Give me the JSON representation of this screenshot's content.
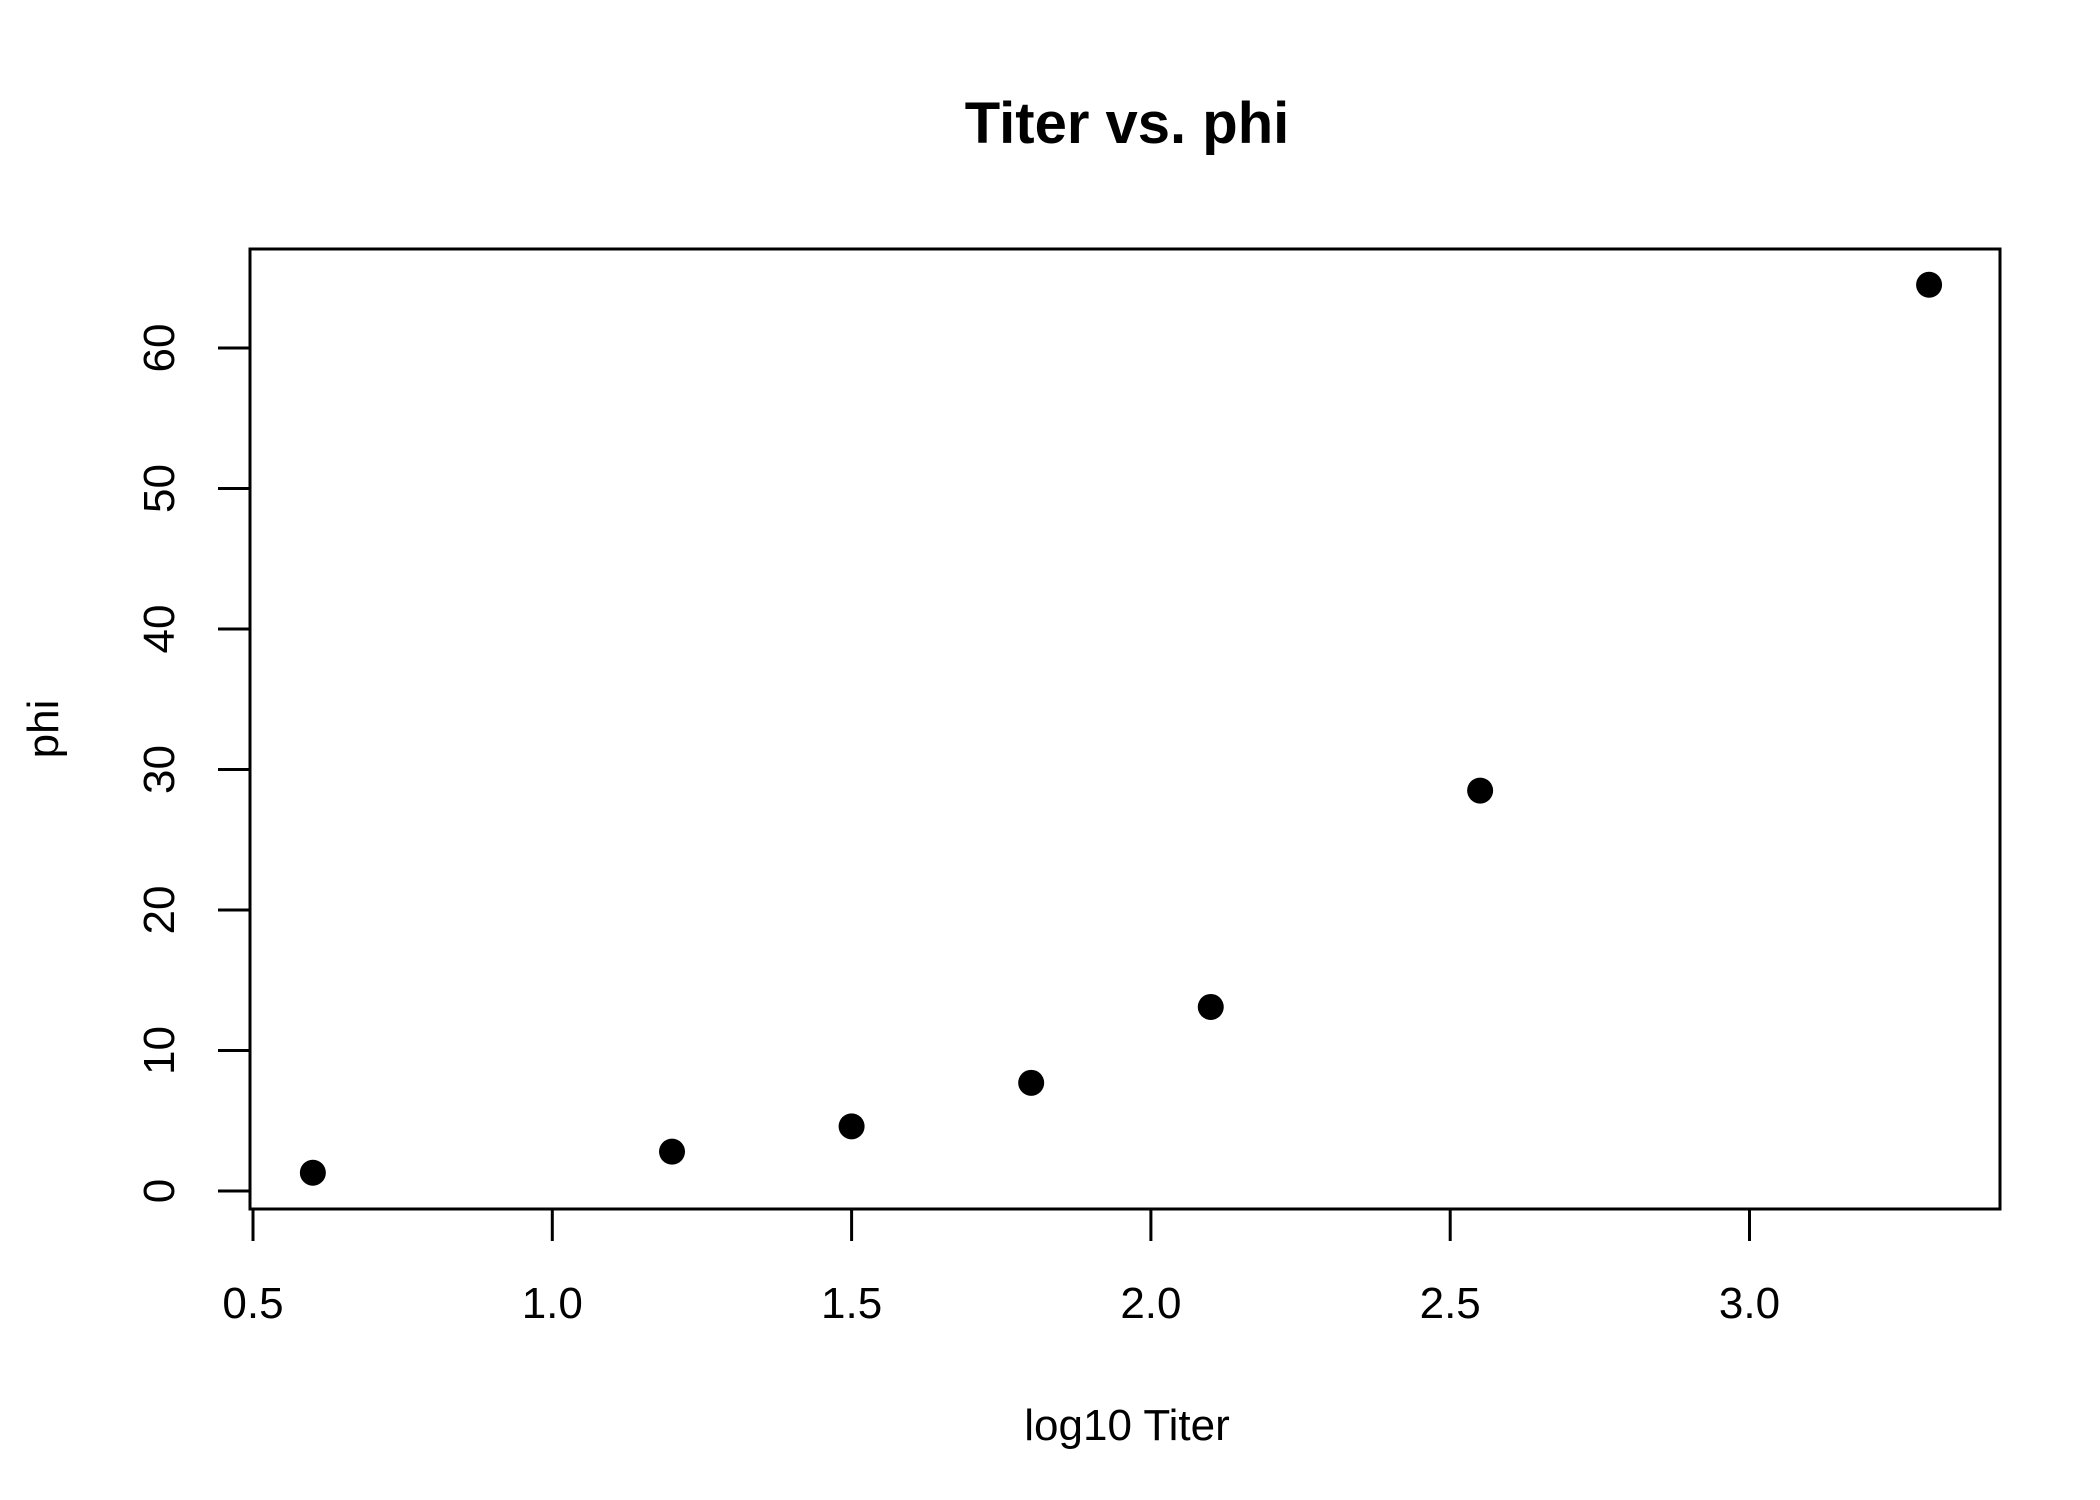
{
  "chart_data": {
    "type": "scatter",
    "title": "Titer vs. phi",
    "xlabel": "log10 Titer",
    "ylabel": "phi",
    "xlim": [
      0.5,
      3.3
    ],
    "ylim": [
      0,
      65
    ],
    "x_ticks": [
      0.5,
      1.0,
      1.5,
      2.0,
      2.5,
      3.0
    ],
    "x_tick_labels": [
      "0.5",
      "1.0",
      "1.5",
      "2.0",
      "2.5",
      "3.0"
    ],
    "y_ticks": [
      0,
      10,
      20,
      30,
      40,
      50,
      60
    ],
    "y_tick_labels": [
      "0",
      "10",
      "20",
      "30",
      "40",
      "50",
      "60"
    ],
    "grid": false,
    "marker_color": "#000000",
    "points": [
      {
        "x": 0.6,
        "y": 1.3
      },
      {
        "x": 1.2,
        "y": 2.8
      },
      {
        "x": 1.5,
        "y": 4.6
      },
      {
        "x": 1.8,
        "y": 7.7
      },
      {
        "x": 2.1,
        "y": 13.1
      },
      {
        "x": 2.55,
        "y": 28.5
      },
      {
        "x": 3.3,
        "y": 64.5
      }
    ]
  }
}
